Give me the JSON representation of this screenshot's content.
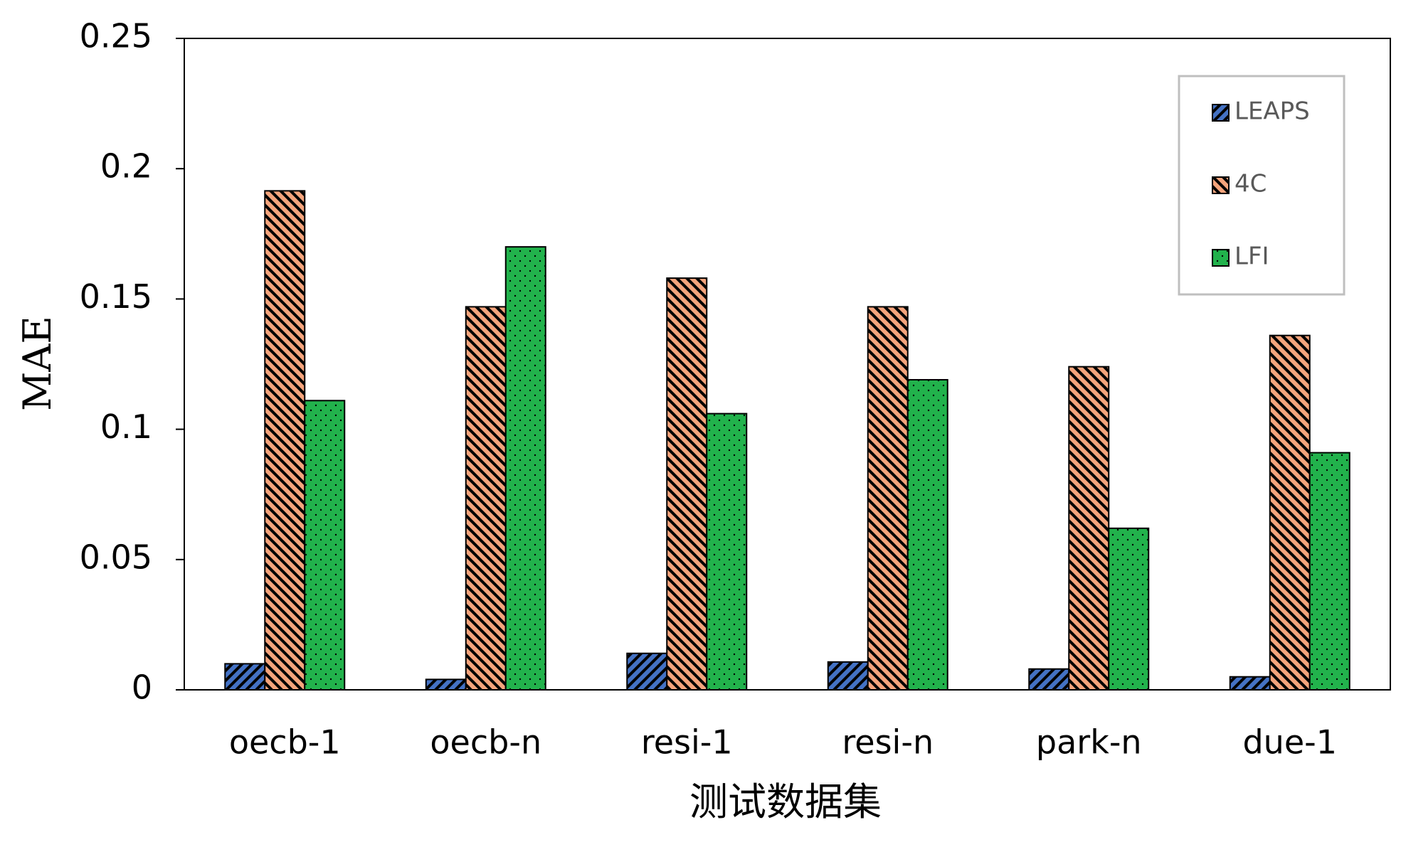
{
  "chart_data": {
    "type": "bar",
    "x_label": "测试数据集",
    "y_label": "MAE",
    "categories": [
      "oecb-1",
      "oecb-n",
      "resi-1",
      "resi-n",
      "park-n",
      "due-1"
    ],
    "series": [
      {
        "name": "LEAPS",
        "color": "#4472c4",
        "pattern": "diagonal",
        "values": [
          0.01,
          0.004,
          0.014,
          0.0107,
          0.008,
          0.005
        ]
      },
      {
        "name": "4C",
        "color": "#f4a47c",
        "pattern": "back-diagonal",
        "values": [
          0.1915,
          0.147,
          0.158,
          0.147,
          0.124,
          0.136
        ]
      },
      {
        "name": "LFI",
        "color": "#22b24c",
        "pattern": "dots",
        "values": [
          0.111,
          0.17,
          0.106,
          0.119,
          0.062,
          0.091
        ]
      }
    ],
    "ylim": [
      0,
      0.25
    ],
    "yticks": [
      0,
      0.05,
      0.1,
      0.15,
      0.2,
      0.25
    ],
    "legend": "upper right"
  }
}
